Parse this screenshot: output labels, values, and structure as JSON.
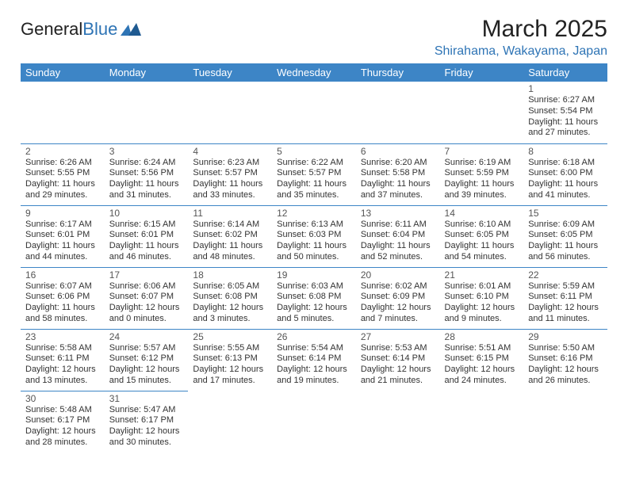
{
  "logo": {
    "text1": "General",
    "text2": "Blue"
  },
  "title": "March 2025",
  "location": "Shirahama, Wakayama, Japan",
  "header_bg": "#3d85c6",
  "header_fg": "#ffffff",
  "border_color": "#3d85c6",
  "accent_color": "#2e74b5",
  "columns": [
    "Sunday",
    "Monday",
    "Tuesday",
    "Wednesday",
    "Thursday",
    "Friday",
    "Saturday"
  ],
  "weeks": [
    [
      null,
      null,
      null,
      null,
      null,
      null,
      {
        "n": "1",
        "sr": "6:27 AM",
        "ss": "5:54 PM",
        "dl": "11 hours and 27 minutes."
      }
    ],
    [
      {
        "n": "2",
        "sr": "6:26 AM",
        "ss": "5:55 PM",
        "dl": "11 hours and 29 minutes."
      },
      {
        "n": "3",
        "sr": "6:24 AM",
        "ss": "5:56 PM",
        "dl": "11 hours and 31 minutes."
      },
      {
        "n": "4",
        "sr": "6:23 AM",
        "ss": "5:57 PM",
        "dl": "11 hours and 33 minutes."
      },
      {
        "n": "5",
        "sr": "6:22 AM",
        "ss": "5:57 PM",
        "dl": "11 hours and 35 minutes."
      },
      {
        "n": "6",
        "sr": "6:20 AM",
        "ss": "5:58 PM",
        "dl": "11 hours and 37 minutes."
      },
      {
        "n": "7",
        "sr": "6:19 AM",
        "ss": "5:59 PM",
        "dl": "11 hours and 39 minutes."
      },
      {
        "n": "8",
        "sr": "6:18 AM",
        "ss": "6:00 PM",
        "dl": "11 hours and 41 minutes."
      }
    ],
    [
      {
        "n": "9",
        "sr": "6:17 AM",
        "ss": "6:01 PM",
        "dl": "11 hours and 44 minutes."
      },
      {
        "n": "10",
        "sr": "6:15 AM",
        "ss": "6:01 PM",
        "dl": "11 hours and 46 minutes."
      },
      {
        "n": "11",
        "sr": "6:14 AM",
        "ss": "6:02 PM",
        "dl": "11 hours and 48 minutes."
      },
      {
        "n": "12",
        "sr": "6:13 AM",
        "ss": "6:03 PM",
        "dl": "11 hours and 50 minutes."
      },
      {
        "n": "13",
        "sr": "6:11 AM",
        "ss": "6:04 PM",
        "dl": "11 hours and 52 minutes."
      },
      {
        "n": "14",
        "sr": "6:10 AM",
        "ss": "6:05 PM",
        "dl": "11 hours and 54 minutes."
      },
      {
        "n": "15",
        "sr": "6:09 AM",
        "ss": "6:05 PM",
        "dl": "11 hours and 56 minutes."
      }
    ],
    [
      {
        "n": "16",
        "sr": "6:07 AM",
        "ss": "6:06 PM",
        "dl": "11 hours and 58 minutes."
      },
      {
        "n": "17",
        "sr": "6:06 AM",
        "ss": "6:07 PM",
        "dl": "12 hours and 0 minutes."
      },
      {
        "n": "18",
        "sr": "6:05 AM",
        "ss": "6:08 PM",
        "dl": "12 hours and 3 minutes."
      },
      {
        "n": "19",
        "sr": "6:03 AM",
        "ss": "6:08 PM",
        "dl": "12 hours and 5 minutes."
      },
      {
        "n": "20",
        "sr": "6:02 AM",
        "ss": "6:09 PM",
        "dl": "12 hours and 7 minutes."
      },
      {
        "n": "21",
        "sr": "6:01 AM",
        "ss": "6:10 PM",
        "dl": "12 hours and 9 minutes."
      },
      {
        "n": "22",
        "sr": "5:59 AM",
        "ss": "6:11 PM",
        "dl": "12 hours and 11 minutes."
      }
    ],
    [
      {
        "n": "23",
        "sr": "5:58 AM",
        "ss": "6:11 PM",
        "dl": "12 hours and 13 minutes."
      },
      {
        "n": "24",
        "sr": "5:57 AM",
        "ss": "6:12 PM",
        "dl": "12 hours and 15 minutes."
      },
      {
        "n": "25",
        "sr": "5:55 AM",
        "ss": "6:13 PM",
        "dl": "12 hours and 17 minutes."
      },
      {
        "n": "26",
        "sr": "5:54 AM",
        "ss": "6:14 PM",
        "dl": "12 hours and 19 minutes."
      },
      {
        "n": "27",
        "sr": "5:53 AM",
        "ss": "6:14 PM",
        "dl": "12 hours and 21 minutes."
      },
      {
        "n": "28",
        "sr": "5:51 AM",
        "ss": "6:15 PM",
        "dl": "12 hours and 24 minutes."
      },
      {
        "n": "29",
        "sr": "5:50 AM",
        "ss": "6:16 PM",
        "dl": "12 hours and 26 minutes."
      }
    ],
    [
      {
        "n": "30",
        "sr": "5:48 AM",
        "ss": "6:17 PM",
        "dl": "12 hours and 28 minutes."
      },
      {
        "n": "31",
        "sr": "5:47 AM",
        "ss": "6:17 PM",
        "dl": "12 hours and 30 minutes."
      },
      null,
      null,
      null,
      null,
      null
    ]
  ],
  "labels": {
    "sunrise": "Sunrise:",
    "sunset": "Sunset:",
    "daylight": "Daylight:"
  }
}
